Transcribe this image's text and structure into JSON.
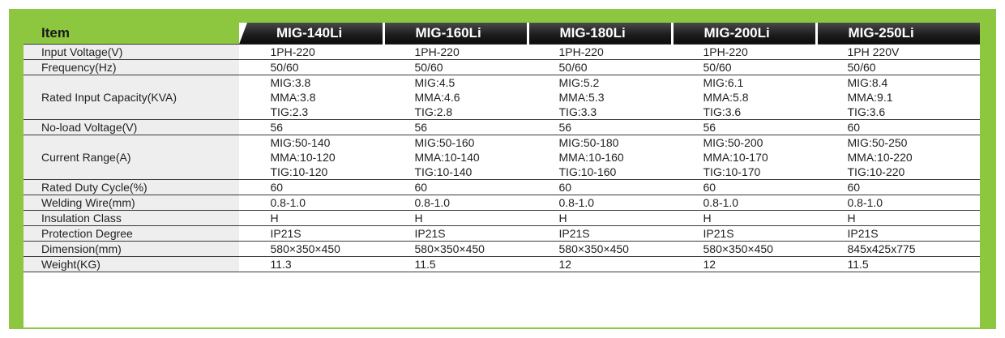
{
  "table": {
    "item_header": "Item",
    "models": [
      "MIG-140Li",
      "MIG-160Li",
      "MIG-180Li",
      "MIG-200Li",
      "MIG-250Li"
    ],
    "rows": [
      {
        "label": "Input Voltage(V)",
        "values": [
          "1PH-220",
          "1PH-220",
          "1PH-220",
          "1PH-220",
          "1PH 220V"
        ]
      },
      {
        "label": "Frequency(Hz)",
        "values": [
          "50/60",
          "50/60",
          "50/60",
          "50/60",
          "50/60"
        ]
      },
      {
        "label": "Rated Input Capacity(KVA)",
        "values": [
          [
            "MIG:3.8",
            "MMA:3.8",
            "TIG:2.3"
          ],
          [
            "MIG:4.5",
            "MMA:4.6",
            "TIG:2.8"
          ],
          [
            "MIG:5.2",
            "MMA:5.3",
            "TIG:3.3"
          ],
          [
            "MIG:6.1",
            "MMA:5.8",
            "TIG:3.6"
          ],
          [
            "MIG:8.4",
            "MMA:9.1",
            "TIG:3.6"
          ]
        ]
      },
      {
        "label": "No-load Voltage(V)",
        "values": [
          "56",
          "56",
          "56",
          "56",
          "60"
        ]
      },
      {
        "label": "Current Range(A)",
        "values": [
          [
            "MIG:50-140",
            "MMA:10-120",
            "TIG:10-120"
          ],
          [
            "MIG:50-160",
            "MMA:10-140",
            "TIG:10-140"
          ],
          [
            "MIG:50-180",
            "MMA:10-160",
            "TIG:10-160"
          ],
          [
            "MIG:50-200",
            "MMA:10-170",
            "TIG:10-170"
          ],
          [
            "MIG:50-250",
            "MMA:10-220",
            "TIG:10-220"
          ]
        ]
      },
      {
        "label": "Rated Duty Cycle(%)",
        "values": [
          "60",
          "60",
          "60",
          "60",
          "60"
        ]
      },
      {
        "label": "Welding Wire(mm)",
        "values": [
          "0.8-1.0",
          "0.8-1.0",
          "0.8-1.0",
          "0.8-1.0",
          "0.8-1.0"
        ]
      },
      {
        "label": "Insulation Class",
        "values": [
          "H",
          "H",
          "H",
          "H",
          "H"
        ]
      },
      {
        "label": "Protection Degree",
        "values": [
          "IP21S",
          "IP21S",
          "IP21S",
          "IP21S",
          "IP21S"
        ]
      },
      {
        "label": "Dimension(mm)",
        "values": [
          "580×350×450",
          "580×350×450",
          "580×350×450",
          "580×350×450",
          "845x425x775"
        ]
      },
      {
        "label": "Weight(KG)",
        "values": [
          "11.3",
          "11.5",
          "12",
          "12",
          "11.5"
        ]
      }
    ]
  },
  "colors": {
    "accent_green": "#8dc63f",
    "header_dark": "#1e1e1e",
    "label_gray": "#eeeeee"
  }
}
